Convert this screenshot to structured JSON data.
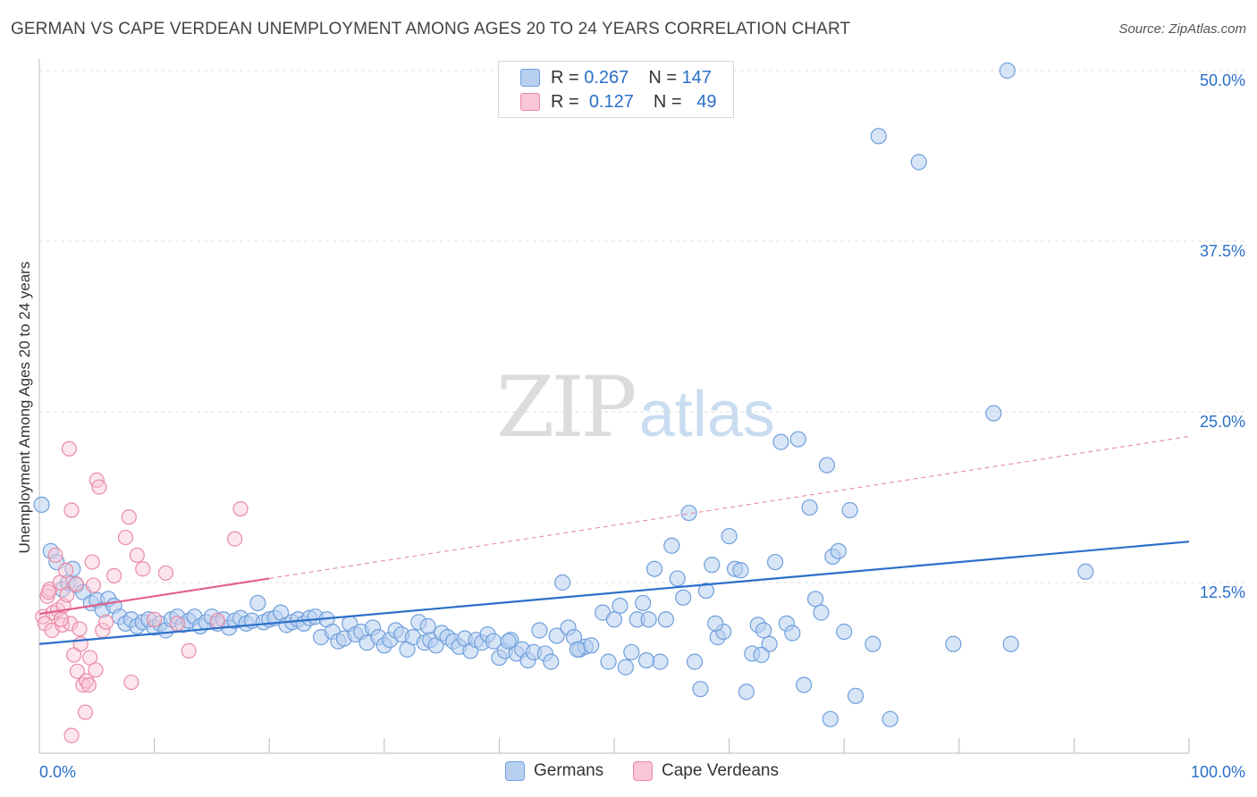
{
  "title": "GERMAN VS CAPE VERDEAN UNEMPLOYMENT AMONG AGES 20 TO 24 YEARS CORRELATION CHART",
  "source": "Source: ZipAtlas.com",
  "watermark": {
    "zip": "ZIP",
    "atlas": "atlas"
  },
  "legend": {
    "r_label": "R =",
    "n_label": "N =",
    "rows": [
      {
        "r": "0.267",
        "n": "147",
        "color": "#b8d0f0"
      },
      {
        "r": "0.127",
        "n": "49",
        "color": "#f8c6d4"
      }
    ]
  },
  "bottom_legend": [
    "Germans",
    "Cape Verdeans"
  ],
  "colors": {
    "blue_fill": "#b8d0f0",
    "blue_stroke": "#6f9fdc",
    "blue_line": "#2a6fc9",
    "pink_fill": "#f8c6d4",
    "pink_stroke": "#ea8aa6",
    "pink_line": "#e0608a",
    "tick_label": "#2a6fc9",
    "grid": "#dddddd"
  },
  "chart_data": {
    "type": "scatter",
    "title": "GERMAN VS CAPE VERDEAN UNEMPLOYMENT AMONG AGES 20 TO 24 YEARS CORRELATION CHART",
    "xlabel": "",
    "ylabel": "Unemployment Among Ages 20 to 24 years",
    "xlim": [
      0,
      100
    ],
    "ylim": [
      0,
      50
    ],
    "x_tick_labels": [
      "0.0%",
      "100.0%"
    ],
    "y_ticks": [
      12.5,
      25.0,
      37.5,
      50.0
    ],
    "y_tick_labels": [
      "12.5%",
      "25.0%",
      "37.5%",
      "50.0%"
    ],
    "grid": "horizontal dashed",
    "legend_position": "top-center",
    "series": [
      {
        "name": "Germans",
        "points": [
          [
            0.2,
            18.2
          ],
          [
            1.0,
            14.8
          ],
          [
            1.5,
            14.0
          ],
          [
            2.0,
            12.0
          ],
          [
            2.5,
            12.5
          ],
          [
            2.9,
            13.5
          ],
          [
            3.2,
            12.3
          ],
          [
            3.8,
            11.8
          ],
          [
            4.5,
            11.0
          ],
          [
            5.0,
            11.2
          ],
          [
            5.5,
            10.5
          ],
          [
            6.0,
            11.3
          ],
          [
            6.5,
            10.8
          ],
          [
            7.0,
            10.0
          ],
          [
            7.5,
            9.5
          ],
          [
            8.0,
            9.8
          ],
          [
            8.5,
            9.3
          ],
          [
            9.0,
            9.6
          ],
          [
            9.5,
            9.8
          ],
          [
            10.0,
            9.2
          ],
          [
            10.5,
            9.5
          ],
          [
            11.0,
            9.0
          ],
          [
            11.5,
            9.8
          ],
          [
            12.0,
            10.0
          ],
          [
            12.5,
            9.4
          ],
          [
            13.0,
            9.7
          ],
          [
            13.5,
            10.0
          ],
          [
            14.0,
            9.3
          ],
          [
            14.5,
            9.6
          ],
          [
            15.0,
            10.0
          ],
          [
            15.5,
            9.5
          ],
          [
            16.0,
            9.8
          ],
          [
            16.5,
            9.2
          ],
          [
            17.0,
            9.7
          ],
          [
            17.5,
            9.9
          ],
          [
            18.0,
            9.5
          ],
          [
            18.5,
            9.7
          ],
          [
            19.0,
            11.0
          ],
          [
            19.5,
            9.6
          ],
          [
            20.0,
            9.8
          ],
          [
            20.5,
            9.9
          ],
          [
            21.0,
            10.3
          ],
          [
            21.5,
            9.4
          ],
          [
            22.0,
            9.6
          ],
          [
            22.5,
            9.8
          ],
          [
            23.0,
            9.5
          ],
          [
            23.5,
            9.9
          ],
          [
            24.0,
            10.0
          ],
          [
            24.5,
            8.5
          ],
          [
            25.0,
            9.8
          ],
          [
            25.5,
            8.9
          ],
          [
            26.0,
            8.2
          ],
          [
            26.5,
            8.4
          ],
          [
            27.0,
            9.5
          ],
          [
            27.5,
            8.7
          ],
          [
            28.0,
            8.9
          ],
          [
            28.5,
            8.1
          ],
          [
            29.0,
            9.2
          ],
          [
            29.5,
            8.5
          ],
          [
            30.0,
            7.9
          ],
          [
            30.5,
            8.3
          ],
          [
            31.0,
            9.0
          ],
          [
            31.5,
            8.7
          ],
          [
            32.0,
            7.6
          ],
          [
            32.5,
            8.5
          ],
          [
            33.0,
            9.6
          ],
          [
            33.5,
            8.1
          ],
          [
            34.0,
            8.3
          ],
          [
            34.5,
            7.9
          ],
          [
            35.0,
            8.8
          ],
          [
            35.5,
            8.5
          ],
          [
            36.0,
            8.2
          ],
          [
            36.5,
            7.8
          ],
          [
            37.0,
            8.4
          ],
          [
            37.5,
            7.5
          ],
          [
            38.0,
            8.3
          ],
          [
            38.5,
            8.1
          ],
          [
            39.0,
            8.7
          ],
          [
            39.5,
            8.2
          ],
          [
            40.0,
            7.0
          ],
          [
            40.5,
            7.5
          ],
          [
            41.0,
            8.3
          ],
          [
            41.5,
            7.3
          ],
          [
            42.0,
            7.6
          ],
          [
            42.5,
            6.8
          ],
          [
            43.0,
            7.4
          ],
          [
            43.5,
            9.0
          ],
          [
            44.0,
            7.3
          ],
          [
            44.5,
            6.7
          ],
          [
            45.0,
            8.6
          ],
          [
            45.5,
            12.5
          ],
          [
            46.0,
            9.2
          ],
          [
            46.5,
            8.5
          ],
          [
            47.0,
            7.6
          ],
          [
            47.5,
            7.8
          ],
          [
            48.0,
            7.9
          ],
          [
            49.0,
            10.3
          ],
          [
            49.5,
            6.7
          ],
          [
            50.0,
            9.8
          ],
          [
            50.5,
            10.8
          ],
          [
            51.0,
            6.3
          ],
          [
            51.5,
            7.4
          ],
          [
            52.0,
            9.8
          ],
          [
            52.5,
            11.0
          ],
          [
            53.0,
            9.8
          ],
          [
            53.5,
            13.5
          ],
          [
            54.0,
            6.7
          ],
          [
            54.5,
            9.8
          ],
          [
            55.0,
            15.2
          ],
          [
            55.5,
            12.8
          ],
          [
            56.0,
            11.4
          ],
          [
            56.5,
            17.6
          ],
          [
            57.0,
            6.7
          ],
          [
            57.5,
            4.7
          ],
          [
            58.0,
            11.9
          ],
          [
            58.5,
            13.8
          ],
          [
            59.0,
            8.5
          ],
          [
            59.5,
            8.9
          ],
          [
            60.0,
            15.9
          ],
          [
            60.5,
            13.5
          ],
          [
            61.0,
            13.4
          ],
          [
            61.5,
            4.5
          ],
          [
            62.0,
            7.3
          ],
          [
            62.5,
            9.4
          ],
          [
            63.0,
            9.0
          ],
          [
            63.5,
            8.0
          ],
          [
            64.0,
            14.0
          ],
          [
            64.5,
            22.8
          ],
          [
            65.0,
            9.5
          ],
          [
            65.5,
            8.8
          ],
          [
            66.0,
            23.0
          ],
          [
            66.5,
            5.0
          ],
          [
            67.0,
            18.0
          ],
          [
            67.5,
            11.3
          ],
          [
            68.0,
            10.3
          ],
          [
            68.5,
            21.1
          ],
          [
            69.0,
            14.4
          ],
          [
            69.5,
            14.8
          ],
          [
            70.0,
            8.9
          ],
          [
            70.5,
            17.8
          ],
          [
            71.0,
            4.2
          ],
          [
            73.0,
            45.2
          ],
          [
            74.0,
            2.5
          ],
          [
            76.5,
            43.3
          ],
          [
            79.5,
            8.0
          ],
          [
            83.0,
            24.9
          ],
          [
            84.5,
            8.0
          ],
          [
            91.0,
            13.3
          ],
          [
            68.8,
            2.5
          ],
          [
            72.5,
            8.0
          ],
          [
            84.2,
            50.0
          ],
          [
            33.8,
            9.3
          ],
          [
            40.8,
            8.2
          ],
          [
            46.8,
            7.6
          ],
          [
            52.8,
            6.8
          ],
          [
            58.8,
            9.5
          ],
          [
            62.8,
            7.2
          ]
        ]
      },
      {
        "name": "Cape Verdeans",
        "points": [
          [
            0.3,
            10.0
          ],
          [
            0.5,
            9.5
          ],
          [
            0.7,
            11.5
          ],
          [
            0.9,
            12.0
          ],
          [
            1.1,
            9.0
          ],
          [
            1.2,
            10.3
          ],
          [
            1.4,
            14.5
          ],
          [
            1.6,
            10.5
          ],
          [
            1.8,
            12.5
          ],
          [
            2.0,
            9.4
          ],
          [
            2.1,
            10.8
          ],
          [
            2.3,
            13.4
          ],
          [
            2.4,
            11.6
          ],
          [
            2.6,
            22.3
          ],
          [
            2.7,
            9.5
          ],
          [
            2.8,
            17.8
          ],
          [
            3.0,
            7.2
          ],
          [
            3.2,
            12.4
          ],
          [
            3.3,
            6.0
          ],
          [
            3.5,
            9.1
          ],
          [
            3.6,
            8.0
          ],
          [
            3.8,
            5.0
          ],
          [
            4.0,
            3.0
          ],
          [
            4.1,
            5.3
          ],
          [
            4.3,
            5.0
          ],
          [
            4.4,
            7.0
          ],
          [
            4.6,
            14.0
          ],
          [
            4.7,
            12.3
          ],
          [
            4.9,
            6.1
          ],
          [
            5.0,
            20.0
          ],
          [
            5.2,
            19.5
          ],
          [
            5.5,
            9.0
          ],
          [
            5.8,
            9.6
          ],
          [
            6.5,
            13.0
          ],
          [
            7.5,
            15.8
          ],
          [
            7.8,
            17.3
          ],
          [
            8.0,
            5.2
          ],
          [
            8.5,
            14.5
          ],
          [
            9.0,
            13.5
          ],
          [
            10.0,
            9.8
          ],
          [
            11.0,
            13.2
          ],
          [
            12.0,
            9.5
          ],
          [
            13.0,
            7.5
          ],
          [
            15.5,
            9.7
          ],
          [
            17.0,
            15.7
          ],
          [
            17.5,
            17.9
          ],
          [
            2.8,
            1.3
          ],
          [
            1.9,
            9.8
          ],
          [
            0.8,
            11.8
          ]
        ]
      }
    ],
    "trendlines": [
      {
        "series": "Germans",
        "from": [
          0,
          8.0
        ],
        "to": [
          100,
          15.5
        ]
      },
      {
        "series": "Cape Verdeans",
        "from": [
          0,
          10.2
        ],
        "to": [
          20,
          12.8
        ],
        "dashed_extension_to": [
          100,
          23.2
        ]
      }
    ]
  }
}
